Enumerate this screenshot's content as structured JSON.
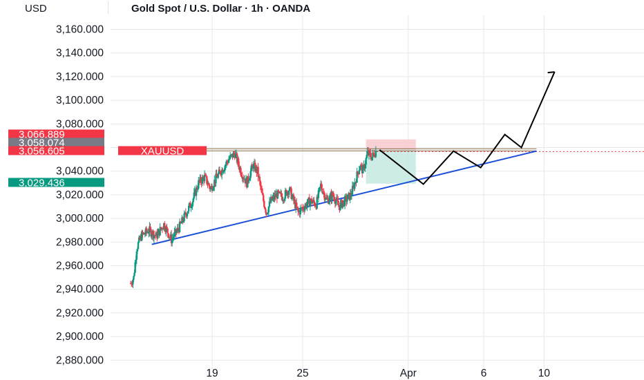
{
  "header": {
    "currency": "USD",
    "title": "Gold Spot / U.S. Dollar · 1h · OANDA"
  },
  "colors": {
    "up": "#089981",
    "down": "#f23645",
    "trendline": "#1e4fd8",
    "projection": "#000000",
    "stop_zone": "#f7c9cd",
    "target_zone": "#c4e9e2",
    "grid": "#e6e8ec"
  },
  "chart_data": {
    "type": "candlestick",
    "title": "Gold Spot / U.S. Dollar · 1h · OANDA",
    "symbol": "XAUUSD",
    "ylabel": "USD",
    "ylim": [
      2872,
      3172
    ],
    "y_ticks": [
      "3,160.000",
      "3,140.000",
      "3,120.000",
      "3,100.000",
      "3,080.000",
      "3,060.000",
      "3,040.000",
      "3,020.000",
      "3,000.000",
      "2,980.000",
      "2,960.000",
      "2,940.000",
      "2,920.000",
      "2,900.000",
      "2,880.000"
    ],
    "x_ticks": [
      {
        "label": "19",
        "day": 19
      },
      {
        "label": "25",
        "day": 25
      },
      {
        "label": "Apr",
        "day": 32
      },
      {
        "label": "6",
        "day": 37
      },
      {
        "label": "10",
        "day": 41
      }
    ],
    "price_tags": [
      {
        "label": "3,066.889",
        "value": 3066.889,
        "kind": "stop"
      },
      {
        "label": "3,058.074",
        "value": 3058.074,
        "kind": "entry"
      },
      {
        "label": "3,056.605",
        "value": 3056.605,
        "kind": "last"
      },
      {
        "label": "3,029.436",
        "value": 3029.436,
        "kind": "target"
      }
    ],
    "symbol_tag": "XAUUSD",
    "price_path": [
      [
        13.6,
        2945
      ],
      [
        13.8,
        2950
      ],
      [
        14.0,
        2975
      ],
      [
        14.3,
        2985
      ],
      [
        14.8,
        2990
      ],
      [
        15.3,
        2985
      ],
      [
        15.8,
        2995
      ],
      [
        16.3,
        2982
      ],
      [
        16.8,
        2992
      ],
      [
        17.3,
        3005
      ],
      [
        17.7,
        3015
      ],
      [
        18.1,
        3030
      ],
      [
        18.5,
        3035
      ],
      [
        18.9,
        3025
      ],
      [
        19.3,
        3035
      ],
      [
        19.7,
        3042
      ],
      [
        20.1,
        3050
      ],
      [
        20.5,
        3055
      ],
      [
        20.9,
        3040
      ],
      [
        21.3,
        3030
      ],
      [
        21.7,
        3045
      ],
      [
        22.0,
        3040
      ],
      [
        22.3,
        3020
      ],
      [
        22.6,
        3005
      ],
      [
        22.9,
        3015
      ],
      [
        23.3,
        3020
      ],
      [
        23.7,
        3018
      ],
      [
        24.1,
        3025
      ],
      [
        24.4,
        3015
      ],
      [
        24.7,
        3005
      ],
      [
        25.1,
        3010
      ],
      [
        25.5,
        3015
      ],
      [
        25.9,
        3012
      ],
      [
        26.2,
        3028
      ],
      [
        26.6,
        3015
      ],
      [
        27.0,
        3020
      ],
      [
        27.4,
        3010
      ],
      [
        27.8,
        3015
      ],
      [
        28.2,
        3020
      ],
      [
        28.5,
        3032
      ],
      [
        28.8,
        3045
      ],
      [
        29.0,
        3040
      ],
      [
        29.3,
        3055
      ],
      [
        29.6,
        3052
      ],
      [
        29.9,
        3058
      ]
    ],
    "trendline": {
      "from": [
        15.0,
        2978
      ],
      "to": [
        40.5,
        3057
      ]
    },
    "resistance": {
      "from": [
        17.0,
        3058.074
      ],
      "to": [
        40.5,
        3058.074
      ]
    },
    "projection": [
      [
        30.1,
        3058
      ],
      [
        33.0,
        3029
      ],
      [
        35.0,
        3057
      ],
      [
        36.8,
        3043
      ],
      [
        38.4,
        3071
      ],
      [
        39.5,
        3060
      ],
      [
        41.7,
        3124
      ]
    ],
    "position_box": {
      "x_from": 29.2,
      "x_to": 32.5,
      "entry": 3058.074,
      "stop": 3066.889,
      "target": 3029.436
    }
  }
}
